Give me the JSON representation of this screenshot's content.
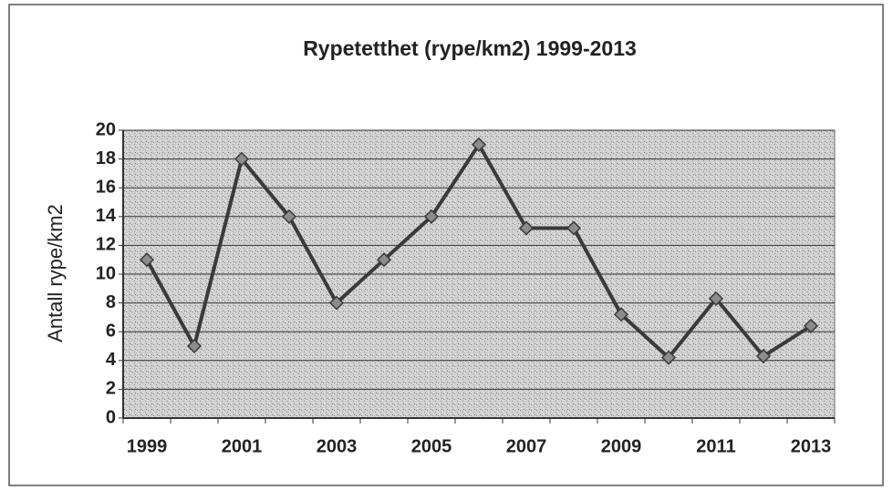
{
  "chart_data": {
    "type": "line",
    "title": "Rypetetthet (rype/km2) 1999-2013",
    "y_label": "Antall rype/km2",
    "categories": [
      "1999",
      null,
      "2001",
      null,
      "2003",
      null,
      "2005",
      null,
      "2007",
      null,
      "2009",
      null,
      "2011",
      null,
      "2013"
    ],
    "series": [
      {
        "name": "Rypetetthet",
        "color": "#3a3a3a",
        "values": [
          11,
          5,
          18,
          14,
          8,
          11,
          14,
          19,
          13.2,
          13.2,
          7.2,
          4.2,
          8.3,
          4.3,
          6.4
        ]
      }
    ],
    "ylim": [
      0,
      20
    ],
    "yticks": [
      0,
      2,
      4,
      6,
      8,
      10,
      12,
      14,
      16,
      18,
      20
    ],
    "grid": true
  }
}
